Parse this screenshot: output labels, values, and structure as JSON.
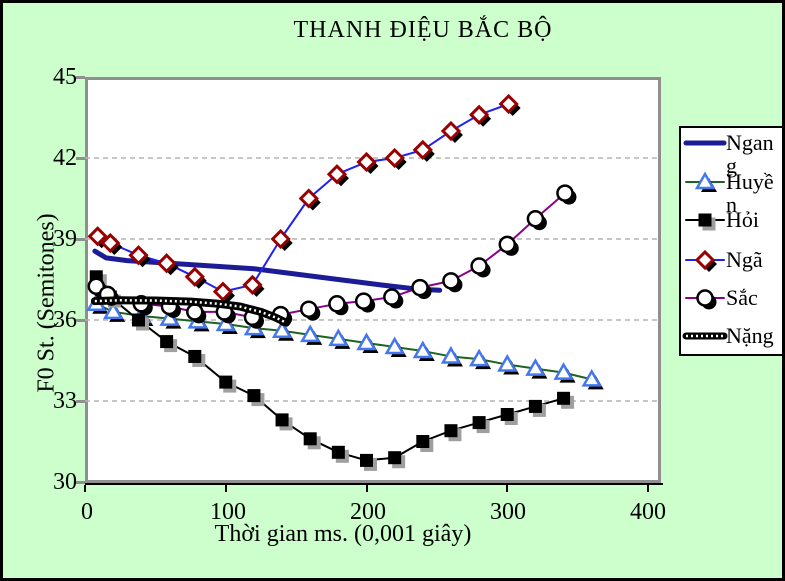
{
  "chart_data": {
    "type": "line",
    "title": "THANH ĐIỆU BẮC BỘ",
    "xlabel": "Thời gian ms. (0,001 giây)",
    "ylabel": "F0 St. (Semitones)",
    "xlim": [
      0,
      409
    ],
    "ylim": [
      30,
      45
    ],
    "xticks": [
      0,
      100,
      200,
      300,
      400
    ],
    "yticks": [
      45,
      42,
      39,
      36,
      33,
      30
    ],
    "grid": "horizontal-dashed",
    "gridline_color": "#b3b3b3",
    "legend_position": "right",
    "background_color": "#ccffcc",
    "plot_background": "#ffffff",
    "plot_border_color": "#8f8f8f",
    "series": [
      {
        "name": "Ngang",
        "legend_label": "Ngan\ng",
        "color": "#1c1c96",
        "line_width": 5,
        "marker": "none",
        "marker_color": "#1c1c96",
        "points": [
          [
            7,
            38.55
          ],
          [
            15,
            38.3
          ],
          [
            30,
            38.2
          ],
          [
            60,
            38.1
          ],
          [
            90,
            38.0
          ],
          [
            120,
            37.9
          ],
          [
            150,
            37.7
          ],
          [
            180,
            37.5
          ],
          [
            210,
            37.3
          ],
          [
            235,
            37.15
          ],
          [
            252,
            37.1
          ]
        ]
      },
      {
        "name": "Huyền",
        "legend_label": "Huyề\nn",
        "color": "#1e641e",
        "line_width": 2,
        "marker": "triangle-open",
        "marker_color": "#4477ee",
        "points": [
          [
            8,
            36.6
          ],
          [
            20,
            36.3
          ],
          [
            40,
            36.15
          ],
          [
            60,
            36.05
          ],
          [
            80,
            35.95
          ],
          [
            100,
            35.85
          ],
          [
            120,
            35.7
          ],
          [
            140,
            35.6
          ],
          [
            160,
            35.45
          ],
          [
            180,
            35.3
          ],
          [
            200,
            35.15
          ],
          [
            220,
            35.0
          ],
          [
            240,
            34.85
          ],
          [
            260,
            34.65
          ],
          [
            280,
            34.55
          ],
          [
            300,
            34.35
          ],
          [
            320,
            34.2
          ],
          [
            340,
            34.05
          ],
          [
            360,
            33.8
          ]
        ]
      },
      {
        "name": "Hỏi",
        "legend_label": "Hỏi",
        "color": "#000000",
        "line_width": 2,
        "marker": "square-filled",
        "marker_color": "#000000",
        "points": [
          [
            8,
            37.6
          ],
          [
            18,
            36.85
          ],
          [
            38,
            36.0
          ],
          [
            58,
            35.2
          ],
          [
            78,
            34.65
          ],
          [
            100,
            33.7
          ],
          [
            120,
            33.2
          ],
          [
            140,
            32.3
          ],
          [
            160,
            31.6
          ],
          [
            180,
            31.1
          ],
          [
            200,
            30.8
          ],
          [
            220,
            30.9
          ],
          [
            240,
            31.5
          ],
          [
            260,
            31.9
          ],
          [
            280,
            32.2
          ],
          [
            300,
            32.5
          ],
          [
            320,
            32.8
          ],
          [
            340,
            33.1
          ]
        ]
      },
      {
        "name": "Ngã",
        "legend_label": "Ngã",
        "color": "#2222ee",
        "line_width": 2,
        "marker": "diamond-open",
        "marker_color": "#990000",
        "points": [
          [
            9,
            39.1
          ],
          [
            18,
            38.85
          ],
          [
            38,
            38.4
          ],
          [
            58,
            38.1
          ],
          [
            78,
            37.6
          ],
          [
            98,
            37.05
          ],
          [
            119,
            37.3
          ],
          [
            139,
            39.0
          ],
          [
            159,
            40.5
          ],
          [
            179,
            41.4
          ],
          [
            200,
            41.85
          ],
          [
            220,
            42.0
          ],
          [
            240,
            42.3
          ],
          [
            260,
            43.0
          ],
          [
            280,
            43.6
          ],
          [
            301,
            44.0
          ]
        ]
      },
      {
        "name": "Sắc",
        "legend_label": "Sắc",
        "color": "#8b008b",
        "line_width": 2,
        "marker": "circle-open",
        "marker_color": "#000000",
        "points": [
          [
            8,
            37.25
          ],
          [
            16,
            36.95
          ],
          [
            40,
            36.6
          ],
          [
            60,
            36.5
          ],
          [
            78,
            36.3
          ],
          [
            99,
            36.3
          ],
          [
            119,
            36.1
          ],
          [
            139,
            36.2
          ],
          [
            159,
            36.4
          ],
          [
            179,
            36.6
          ],
          [
            198,
            36.7
          ],
          [
            218,
            36.85
          ],
          [
            238,
            37.2
          ],
          [
            260,
            37.45
          ],
          [
            280,
            38.0
          ],
          [
            300,
            38.8
          ],
          [
            320,
            39.75
          ],
          [
            341,
            40.7
          ]
        ]
      },
      {
        "name": "Nặng",
        "legend_label": "Nặng",
        "color": "#000000",
        "line_width": 8,
        "marker": "none",
        "marker_color": "#000000",
        "pattern": "white-dotted-overlay",
        "points": [
          [
            7,
            36.7
          ],
          [
            25,
            36.73
          ],
          [
            50,
            36.72
          ],
          [
            75,
            36.68
          ],
          [
            95,
            36.6
          ],
          [
            110,
            36.5
          ],
          [
            125,
            36.3
          ],
          [
            135,
            36.1
          ],
          [
            143,
            35.9
          ]
        ]
      }
    ]
  }
}
